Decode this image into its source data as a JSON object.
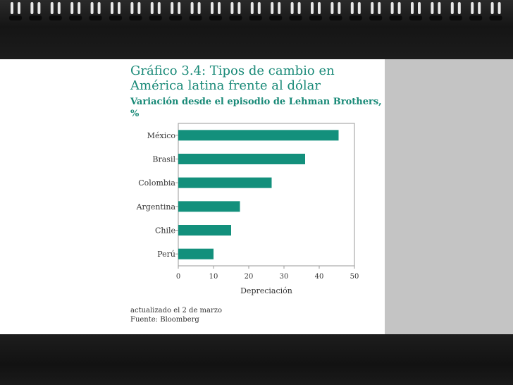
{
  "card": {
    "title": "Gráfico 3.4: Tipos de cambio en América latina frente al dólar",
    "subtitle": "Variación desde el episodio de Lehman Brothers, %",
    "note": "actualizado el 2 de marzo",
    "source": "Fuente: Bloomberg"
  },
  "colors": {
    "bar": "#13907c",
    "title": "#1a8a78",
    "background": "#ffffff",
    "side_panel": "#c4c4c4",
    "frame": "#141414"
  },
  "chart_data": {
    "type": "bar",
    "orientation": "horizontal",
    "title": "Gráfico 3.4: Tipos de cambio en América latina frente al dólar",
    "subtitle": "Variación desde el episodio de Lehman Brothers, %",
    "categories": [
      "México",
      "Brasil",
      "Colombia",
      "Argentina",
      "Chile",
      "Perú"
    ],
    "values": [
      45.5,
      36,
      26.5,
      17.5,
      15,
      10
    ],
    "xlabel": "Depreciación",
    "ylabel": "",
    "xlim": [
      0,
      50
    ],
    "xticks": [
      0,
      10,
      20,
      30,
      40,
      50
    ],
    "grid": false
  }
}
